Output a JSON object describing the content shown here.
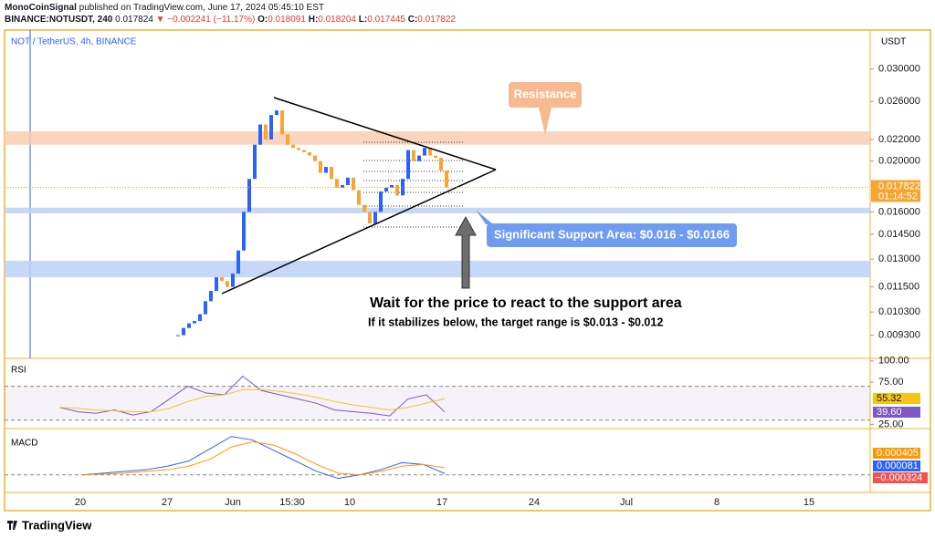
{
  "header": {
    "author": "MonoCoinSignal",
    "published": "published on TradingView.com, June 17, 2024 05:45:10 EST",
    "symbol": "BINANCE:NOTUSDT, 240",
    "last": "0.017824",
    "change": "▼ −0.002241 (−11.17%)",
    "ohlc": [
      {
        "label": "O:",
        "value": "0.018091"
      },
      {
        "label": "H:",
        "value": "0.018204"
      },
      {
        "label": "L:",
        "value": "0.017445"
      },
      {
        "label": "C:",
        "value": "0.017822"
      }
    ]
  },
  "chart_data": [
    {
      "type": "candlestick",
      "title": "NOT / TetherUS, 4h, BINANCE",
      "y_unit": "USDT",
      "log_scale": true,
      "ylim": [
        0.0084,
        0.0356
      ],
      "yticks": [
        {
          "value": 0.03,
          "label": "0.030000"
        },
        {
          "value": 0.026,
          "label": "0.026000"
        },
        {
          "value": 0.022,
          "label": "0.022000"
        },
        {
          "value": 0.02,
          "label": "0.020000"
        },
        {
          "value": 0.016,
          "label": "0.016000"
        },
        {
          "value": 0.0145,
          "label": "0.014500"
        },
        {
          "value": 0.013,
          "label": "0.013000"
        },
        {
          "value": 0.0115,
          "label": "0.011500"
        },
        {
          "value": 0.0103,
          "label": "0.010300"
        },
        {
          "value": 0.0093,
          "label": "0.009300"
        }
      ],
      "series": [
        {
          "name": "Close",
          "up_color": "#2962ff",
          "down_color": "#f7a531",
          "values": [
            0.0093,
            0.0096,
            0.0098,
            0.0099,
            0.0102,
            0.0108,
            0.0113,
            0.012,
            0.0118,
            0.0115,
            0.0122,
            0.0135,
            0.016,
            0.0185,
            0.0215,
            0.0235,
            0.022,
            0.0245,
            0.025,
            0.0225,
            0.0215,
            0.0212,
            0.021,
            0.0208,
            0.0205,
            0.02,
            0.019,
            0.0195,
            0.0185,
            0.0178,
            0.018,
            0.0186,
            0.0176,
            0.0165,
            0.016,
            0.0152,
            0.016,
            0.0175,
            0.0178,
            0.018,
            0.0172,
            0.0185,
            0.021,
            0.02,
            0.0205,
            0.0212,
            0.0205,
            0.0203,
            0.0192,
            0.017822
          ]
        }
      ],
      "price_label": "0.017822",
      "countdown": "01:14:52",
      "zones": [
        {
          "low": 0.0215,
          "high": 0.0228,
          "color": "#f9cdb0"
        },
        {
          "low": 0.0159,
          "high": 0.0163,
          "color": "#bcd0f7"
        },
        {
          "low": 0.012,
          "high": 0.0129,
          "color": "#bcd0f7"
        }
      ]
    },
    {
      "type": "line",
      "title": "RSI",
      "ylim": [
        20,
        103
      ],
      "yticks": [
        {
          "value": 100,
          "label": "100.00"
        },
        {
          "value": 75,
          "label": "75.00"
        },
        {
          "value": 25,
          "label": "25.00"
        }
      ],
      "bands": [
        30,
        70
      ],
      "series": [
        {
          "name": "RSI",
          "color": "#7e57c2",
          "values": [
            45,
            40,
            38,
            42,
            36,
            40,
            55,
            70,
            62,
            60,
            82,
            65,
            60,
            55,
            50,
            42,
            40,
            38,
            35,
            55,
            60,
            39.6
          ],
          "value_labels": [
            "39.60"
          ]
        },
        {
          "name": "RSI MA",
          "color": "#f5c518",
          "values": [
            45,
            44,
            42,
            41,
            40,
            40,
            44,
            52,
            58,
            60,
            66,
            66,
            64,
            61,
            57,
            52,
            48,
            45,
            42,
            45,
            50,
            55.32
          ],
          "value_labels": [
            "55.32"
          ]
        }
      ]
    },
    {
      "type": "line",
      "title": "MACD",
      "ylim": [
        -0.0009,
        0.0025
      ],
      "series": [
        {
          "name": "MACD",
          "color": "#2962ff",
          "values": [
            0,
            0.0001,
            0.0002,
            0.0003,
            0.0005,
            0.0008,
            0.0015,
            0.0022,
            0.002,
            0.0014,
            0.0008,
            0.0002,
            -0.0002,
            0,
            0.0003,
            0.0007,
            0.0006,
            8.1e-05
          ],
          "value_labels": [
            "0.000081"
          ]
        },
        {
          "name": "Signal",
          "color": "#ff9800",
          "values": [
            0,
            5e-05,
            0.0001,
            0.0002,
            0.0003,
            0.0005,
            0.0009,
            0.0016,
            0.0019,
            0.0017,
            0.0012,
            0.0006,
            0.0001,
            0,
            0.0002,
            0.0005,
            0.0006,
            0.000405
          ],
          "value_labels": [
            "0.000405"
          ]
        }
      ],
      "histogram_label": "−0.000324"
    }
  ],
  "time_axis": [
    "20",
    "27",
    "Jun",
    "15:30",
    "10",
    "17",
    "24",
    "Jul",
    "8",
    "15"
  ],
  "annotations": {
    "resistance": "Resistance",
    "support": "Significant Support Area: $0.016 - $0.0166",
    "main": "Wait for the price to react to the support area",
    "sub": "If it stabilizes below, the target range is $0.013 - $0.012"
  },
  "footer": "TradingView"
}
